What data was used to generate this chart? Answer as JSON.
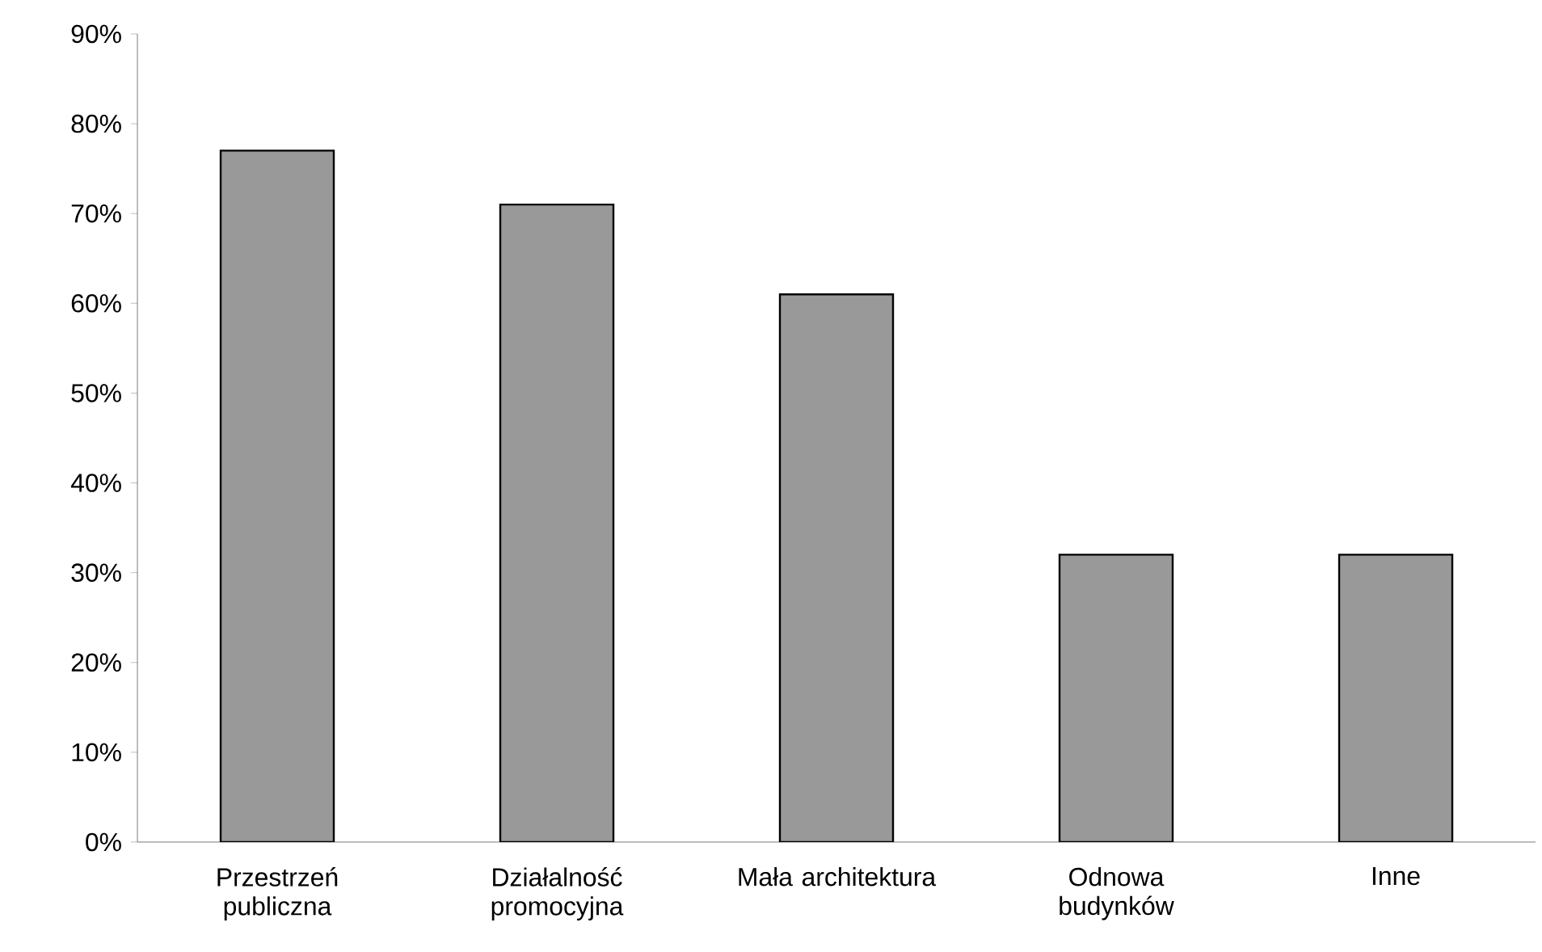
{
  "chart_data": {
    "type": "bar",
    "categories": [
      "Przestrzeń publiczna",
      "Działalność promocyjna",
      "Mała architektura",
      "Odnowa budynków",
      "Inne"
    ],
    "values": [
      77,
      71,
      61,
      32,
      32
    ],
    "color": "#999999",
    "ylim": [
      0,
      90
    ],
    "yticks": [
      {
        "value": 0,
        "label": "0%"
      },
      {
        "value": 10,
        "label": "10%"
      },
      {
        "value": 20,
        "label": "20%"
      },
      {
        "value": 30,
        "label": "30%"
      },
      {
        "value": 40,
        "label": "40%"
      },
      {
        "value": 50,
        "label": "50%"
      },
      {
        "value": 60,
        "label": "60%"
      },
      {
        "value": 70,
        "label": "70%"
      },
      {
        "value": 80,
        "label": "80%"
      },
      {
        "value": 90,
        "label": "90%"
      }
    ],
    "grid": false
  }
}
